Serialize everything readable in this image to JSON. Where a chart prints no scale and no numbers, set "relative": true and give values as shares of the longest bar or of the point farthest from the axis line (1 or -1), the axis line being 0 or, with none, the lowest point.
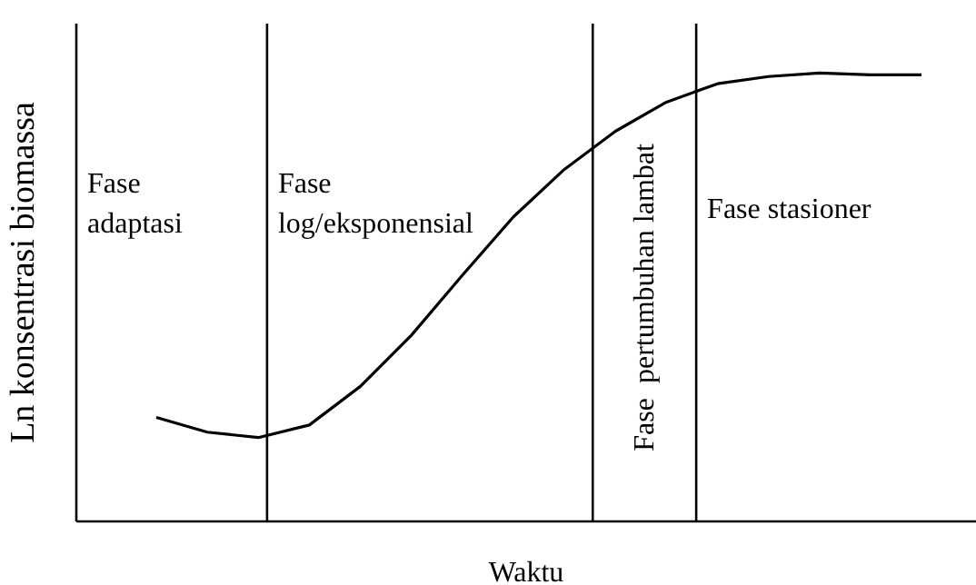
{
  "chart_data": {
    "type": "line",
    "relative": true,
    "xlabel": "Waktu",
    "ylabel": "Ln konsentrasi biomassa",
    "marker": "none",
    "line_style": "solid",
    "categories": [
      null,
      null,
      null,
      null,
      null,
      null,
      null,
      null,
      null,
      null,
      null,
      null,
      null,
      null,
      null,
      null
    ],
    "series": [
      {
        "color": "#000000",
        "values": [
          0.232,
          0.199,
          0.187,
          0.215,
          0.301,
          0.415,
          0.549,
          0.679,
          0.785,
          0.87,
          0.935,
          0.976,
          0.992,
          1,
          0.996,
          0.996
        ]
      }
    ],
    "annotations": [
      "Fase adaptasi",
      "Fase log/eksponensial",
      "Fase  pertumbuhan lambat",
      "Fase stasioner"
    ]
  }
}
